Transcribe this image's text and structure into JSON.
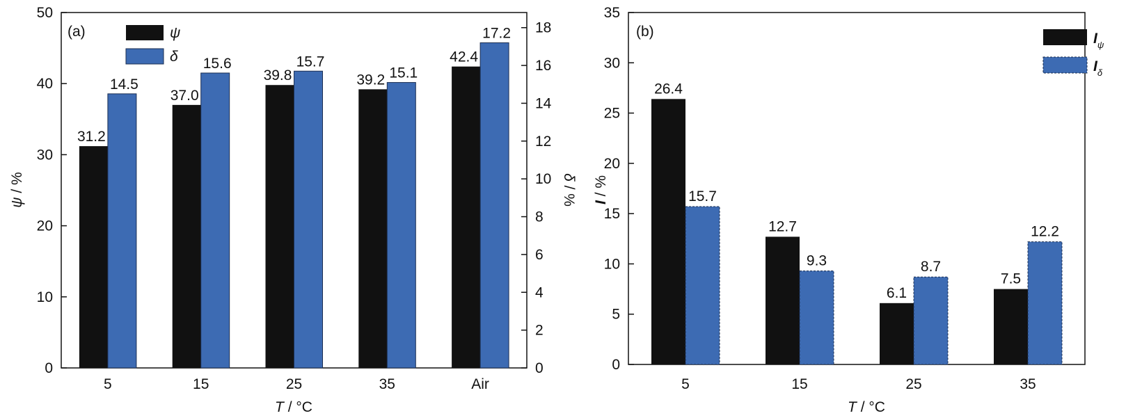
{
  "chart_data": [
    {
      "panel_label": "(a)",
      "type": "bar",
      "categories": [
        "5",
        "15",
        "25",
        "35",
        "Air"
      ],
      "series": [
        {
          "name": "ψ",
          "axis": "left",
          "color": "#111111",
          "values": [
            31.2,
            37.0,
            39.8,
            39.2,
            42.4
          ],
          "labels": [
            "31.2",
            "37.0",
            "39.8",
            "39.2",
            "42.4"
          ]
        },
        {
          "name": "δ",
          "axis": "right",
          "color": "#3d6bb3",
          "values": [
            14.5,
            15.6,
            15.7,
            15.1,
            17.2
          ],
          "labels": [
            "14.5",
            "15.6",
            "15.7",
            "15.1",
            "17.2"
          ]
        }
      ],
      "ylabel_left": {
        "symbol": "ψ",
        "unit": " / %"
      },
      "ylabel_right": {
        "symbol": "δ",
        "unit": " / %"
      },
      "xlabel": {
        "symbol": "T",
        "unit": " / °C"
      },
      "ylim_left": [
        0,
        50
      ],
      "yticks_left": [
        "0",
        "10",
        "20",
        "30",
        "40",
        "50"
      ],
      "ylim_right": [
        0,
        18.8
      ],
      "yticks_right": [
        "0",
        "2",
        "4",
        "6",
        "8",
        "10",
        "12",
        "14",
        "16",
        "18"
      ],
      "legend": "top-left",
      "grid": false
    },
    {
      "panel_label": "(b)",
      "type": "bar",
      "categories": [
        "5",
        "15",
        "25",
        "35"
      ],
      "series": [
        {
          "name": "I",
          "subscript": "ψ",
          "color": "#111111",
          "values": [
            26.4,
            12.7,
            6.1,
            7.5
          ],
          "labels": [
            "26.4",
            "12.7",
            "6.1",
            "7.5"
          ]
        },
        {
          "name": "I",
          "subscript": "δ",
          "color": "#3d6bb3",
          "values": [
            15.7,
            9.3,
            8.7,
            12.2
          ],
          "labels": [
            "15.7",
            "9.3",
            "8.7",
            "12.2"
          ]
        }
      ],
      "ylabel": {
        "symbol": "I",
        "unit": " / %"
      },
      "xlabel": {
        "symbol": "T",
        "unit": " / °C"
      },
      "ylim": [
        0,
        35
      ],
      "yticks": [
        "0",
        "5",
        "10",
        "15",
        "20",
        "25",
        "30",
        "35"
      ],
      "legend": "top-right",
      "grid": false
    }
  ]
}
